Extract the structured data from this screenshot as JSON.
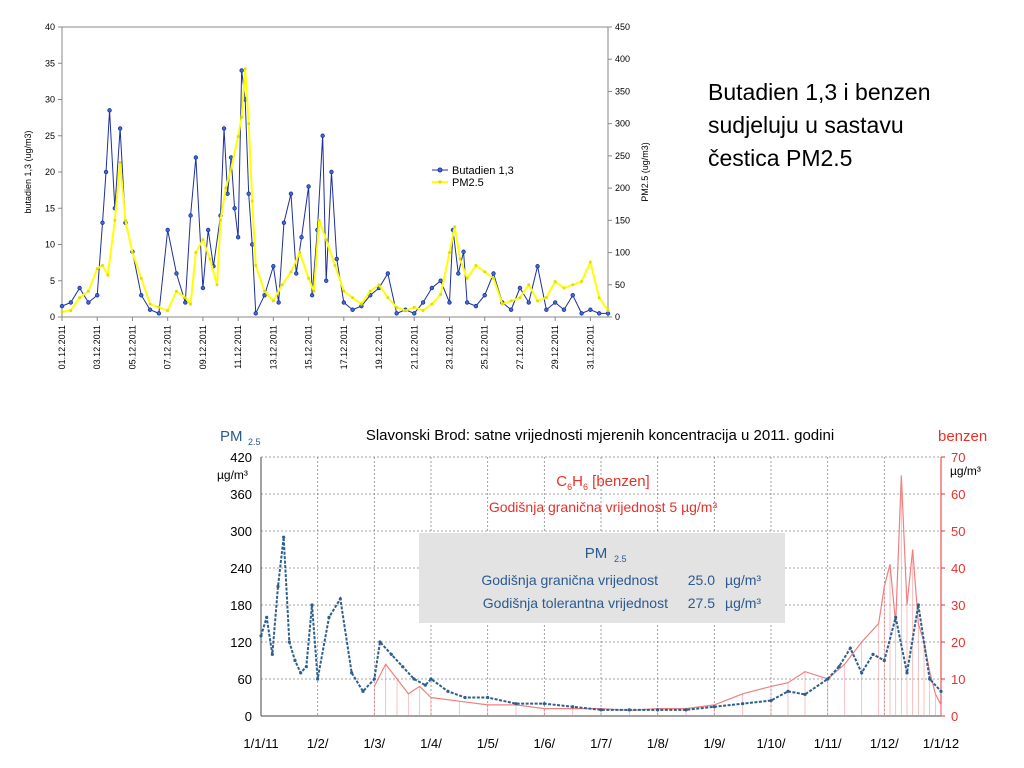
{
  "slide": {
    "text_lines": [
      "Butadien 1,3 i benzen",
      "sudjeluju u sastavu",
      "čestica PM2.5"
    ]
  },
  "chart_data": [
    {
      "type": "line",
      "title": "",
      "ylabel": "butadien 1,3 (ug/m3)",
      "y2label": "PM2.5 (ug/m3)",
      "ylim": [
        0,
        40
      ],
      "y2lim": [
        0,
        450
      ],
      "yticks": [
        "0",
        "5",
        "10",
        "15",
        "20",
        "25",
        "30",
        "35",
        "40"
      ],
      "y2ticks": [
        "0",
        "50",
        "100",
        "150",
        "200",
        "250",
        "300",
        "350",
        "400",
        "450"
      ],
      "x_tick_labels": [
        "01.12.2011",
        "03.12.2011",
        "05.12.2011",
        "07.12.2011",
        "09.12.2011",
        "11.12.2011",
        "13.12.2011",
        "15.12.2011",
        "17.12.2011",
        "19.12.2011",
        "21.12.2011",
        "23.12.2011",
        "25.12.2011",
        "27.12.2011",
        "29.12.2011",
        "31.12.2011"
      ],
      "xlim_days": [
        1,
        32
      ],
      "grid": false,
      "legend_position": "center-right",
      "series": [
        {
          "name": "Butadien 1,3",
          "axis": "left",
          "color": "#1f2f9a",
          "marker_color": "#1f2f9a",
          "x_day": [
            1,
            1.5,
            2,
            2.5,
            3,
            3.3,
            3.5,
            3.7,
            4,
            4.3,
            4.6,
            5,
            5.5,
            6,
            6.5,
            7,
            7.5,
            8,
            8.3,
            8.6,
            9,
            9.3,
            9.6,
            10,
            10.2,
            10.4,
            10.6,
            10.8,
            11,
            11.2,
            11.4,
            11.6,
            11.8,
            12,
            12.5,
            13,
            13.3,
            13.6,
            14,
            14.3,
            14.6,
            15,
            15.2,
            15.5,
            15.8,
            16,
            16.3,
            16.6,
            17,
            17.5,
            18,
            18.5,
            19,
            19.5,
            20,
            20.5,
            21,
            21.5,
            22,
            22.5,
            23,
            23.2,
            23.5,
            23.8,
            24,
            24.5,
            25,
            25.5,
            26,
            26.5,
            27,
            27.5,
            28,
            28.5,
            29,
            29.5,
            30,
            30.5,
            31,
            31.5,
            32
          ],
          "values": [
            1.5,
            2,
            4,
            2,
            3,
            13,
            20,
            28.5,
            15,
            26,
            13,
            9,
            3,
            1,
            0.5,
            12,
            6,
            2,
            14,
            22,
            4,
            12,
            7,
            14,
            26,
            17,
            22,
            15,
            11,
            34,
            30,
            17,
            10,
            0.5,
            3,
            7,
            2,
            13,
            17,
            6,
            11,
            18,
            3,
            12,
            25,
            5,
            20,
            8,
            2,
            1,
            1.5,
            3,
            4,
            6,
            0.5,
            1,
            0.5,
            2,
            4,
            5,
            2,
            12,
            6,
            9,
            2,
            1.5,
            3,
            6,
            2,
            1,
            4,
            2,
            7,
            1,
            2,
            1,
            3,
            0.5,
            1,
            0.5,
            0.5
          ]
        },
        {
          "name": "PM2.5",
          "axis": "right",
          "color": "#ffff00",
          "marker_color": "#dddd00",
          "x_day": [
            1,
            1.5,
            2,
            2.5,
            3,
            3.3,
            3.6,
            4,
            4.3,
            4.6,
            5,
            5.5,
            6,
            6.5,
            7,
            7.5,
            8,
            8.3,
            8.6,
            9,
            9.4,
            9.8,
            10,
            10.3,
            10.6,
            11,
            11.2,
            11.4,
            11.6,
            11.8,
            12,
            12.5,
            13,
            13.5,
            14,
            14.5,
            15,
            15.3,
            15.6,
            16,
            16.5,
            17,
            17.5,
            18,
            18.5,
            19,
            19.5,
            20,
            20.5,
            21,
            21.5,
            22,
            22.5,
            23,
            23.3,
            23.6,
            24,
            24.5,
            25,
            25.5,
            26,
            26.5,
            27,
            27.5,
            28,
            28.5,
            29,
            29.5,
            30,
            30.5,
            31,
            31.5,
            32
          ],
          "values": [
            8,
            10,
            30,
            40,
            75,
            80,
            65,
            150,
            240,
            150,
            100,
            60,
            20,
            15,
            10,
            40,
            30,
            20,
            100,
            120,
            90,
            50,
            150,
            200,
            230,
            280,
            310,
            385,
            300,
            180,
            80,
            40,
            25,
            50,
            70,
            100,
            60,
            40,
            150,
            120,
            80,
            40,
            30,
            20,
            40,
            50,
            30,
            15,
            10,
            15,
            10,
            20,
            35,
            100,
            140,
            90,
            60,
            80,
            70,
            60,
            20,
            25,
            30,
            50,
            25,
            30,
            55,
            45,
            50,
            55,
            85,
            30,
            10
          ]
        }
      ]
    },
    {
      "type": "line",
      "title": "Slavonski Brod: satne vrijednosti mjerenih koncentracija u 2011. godini",
      "ylabel": "PM",
      "ylabel_sub": "2.5",
      "y2label": "benzen",
      "yunit": "µg/m³",
      "y2unit": "µg/m³",
      "ylim": [
        0,
        420
      ],
      "y2lim": [
        0,
        70
      ],
      "yticks": [
        "0",
        "60",
        "120",
        "180",
        "240",
        "300",
        "360",
        "420"
      ],
      "y2ticks": [
        "0",
        "10",
        "20",
        "30",
        "40",
        "50",
        "60",
        "70"
      ],
      "x_tick_labels": [
        "1/1/11",
        "1/2/",
        "1/3/",
        "1/4/",
        "1/5/",
        "1/6/",
        "1/7/",
        "1/8/",
        "1/9/",
        "1/10/",
        "1/11/",
        "1/12/",
        "1/1/12"
      ],
      "x_tick_bold_prefix_index": 7,
      "grid": true,
      "legend_position": "inside",
      "annotations": {
        "benzen_box": {
          "line1_pre": "C",
          "line1_sub1": "6",
          "line1_mid": "H",
          "line1_sub2": "6",
          "line1_post": " [benzen]",
          "line2": "Godišnja granična vrijednost  5 µg/m³",
          "color": "#e8312a"
        },
        "pm_box": {
          "title": "PM",
          "title_sub": "2.5",
          "row1_label": "Godišnja granična vrijednost",
          "row1_value": "25.0",
          "row1_unit": "µg/m³",
          "row2_label": "Godišnja tolerantna vrijednost",
          "row2_value": "27.5",
          "row2_unit": "µg/m³",
          "color": "#2b5a8f",
          "background": "#e3e3e3"
        }
      },
      "series": [
        {
          "name": "PM2.5",
          "axis": "left",
          "color": "#2c5f8f",
          "x_month": [
            0,
            0.1,
            0.2,
            0.3,
            0.4,
            0.5,
            0.6,
            0.7,
            0.8,
            0.9,
            1,
            1.2,
            1.4,
            1.6,
            1.8,
            2,
            2.1,
            2.3,
            2.5,
            2.7,
            2.9,
            3,
            3.3,
            3.6,
            4,
            4.5,
            5,
            5.5,
            6,
            6.5,
            7,
            7.5,
            8,
            8.5,
            9,
            9.3,
            9.6,
            10,
            10.2,
            10.4,
            10.6,
            10.8,
            11,
            11.2,
            11.4,
            11.6,
            11.8,
            12
          ],
          "values": [
            130,
            160,
            100,
            210,
            290,
            120,
            90,
            70,
            80,
            180,
            60,
            160,
            190,
            70,
            40,
            60,
            120,
            100,
            80,
            60,
            50,
            60,
            40,
            30,
            30,
            20,
            20,
            15,
            10,
            10,
            10,
            10,
            15,
            20,
            25,
            40,
            35,
            60,
            80,
            110,
            70,
            100,
            90,
            160,
            70,
            180,
            60,
            40
          ]
        },
        {
          "name": "benzen",
          "axis": "right",
          "color": "#f08080",
          "x_month": [
            2,
            2.2,
            2.4,
            2.6,
            2.8,
            3,
            3.5,
            4,
            4.5,
            5,
            5.5,
            6,
            6.5,
            7,
            7.5,
            8,
            8.5,
            9,
            9.3,
            9.6,
            10,
            10.3,
            10.6,
            10.9,
            11,
            11.1,
            11.2,
            11.3,
            11.4,
            11.5,
            11.6,
            11.7,
            11.8,
            11.9,
            12
          ],
          "values": [
            8,
            14,
            10,
            6,
            8,
            5,
            4,
            3,
            3,
            2,
            2,
            2,
            1.5,
            2,
            2,
            3,
            6,
            8,
            9,
            12,
            10,
            14,
            20,
            25,
            35,
            41,
            25,
            65,
            30,
            45,
            25,
            20,
            12,
            6,
            3
          ]
        }
      ]
    }
  ]
}
